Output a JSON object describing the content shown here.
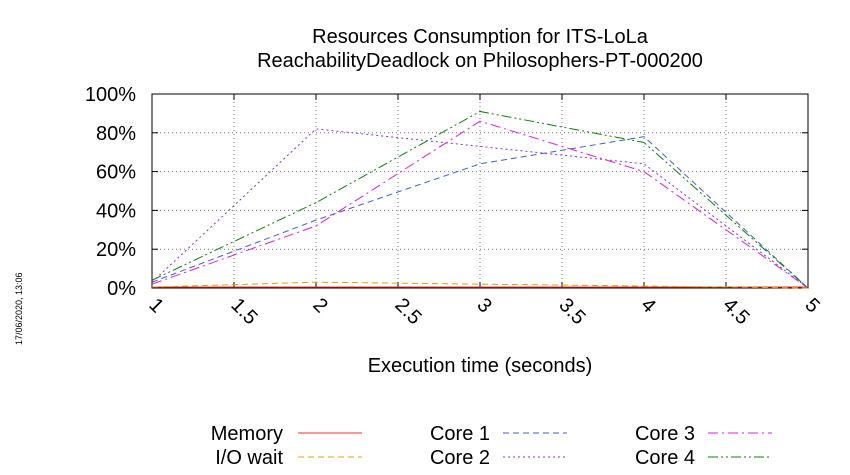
{
  "chart_data": {
    "type": "line",
    "title_line1": "Resources Consumption for ITS-LoLa",
    "title_line2": "ReachabilityDeadlock on Philosophers-PT-000200",
    "xlabel": "Execution time (seconds)",
    "ylabel": "",
    "xlim": [
      1,
      5
    ],
    "ylim": [
      0,
      100
    ],
    "x_ticks": [
      "1",
      "1.5",
      "2",
      "2.5",
      "3",
      "3.5",
      "4",
      "4.5",
      "5"
    ],
    "y_ticks": [
      "0%",
      "20%",
      "40%",
      "60%",
      "80%",
      "100%"
    ],
    "grid": true,
    "legend_position": "bottom",
    "timestamp": "17/06/2020, 13:06",
    "x": [
      1,
      2,
      3,
      4,
      5
    ],
    "series": [
      {
        "name": "Memory",
        "color": "#ff3030",
        "dash": "solid",
        "values": [
          0.5,
          0.5,
          0.5,
          0.5,
          0.5
        ]
      },
      {
        "name": "I/O wait",
        "color": "#e8a000",
        "dash": "dashed",
        "values": [
          0.5,
          3,
          2,
          1,
          0
        ]
      },
      {
        "name": "Core 1",
        "color": "#4060d0",
        "dash": "dashed",
        "values": [
          3,
          35,
          64,
          78,
          0
        ]
      },
      {
        "name": "Core 2",
        "color": "#9030e0",
        "dash": "dotted",
        "values": [
          3,
          82,
          73,
          64,
          0
        ]
      },
      {
        "name": "Core 3",
        "color": "#e020e0",
        "dash": "dashdot",
        "values": [
          2,
          32,
          86,
          60,
          0
        ]
      },
      {
        "name": "Core 4",
        "color": "#108010",
        "dash": "dashdotdot",
        "values": [
          4,
          44,
          91,
          75,
          0
        ]
      }
    ]
  }
}
